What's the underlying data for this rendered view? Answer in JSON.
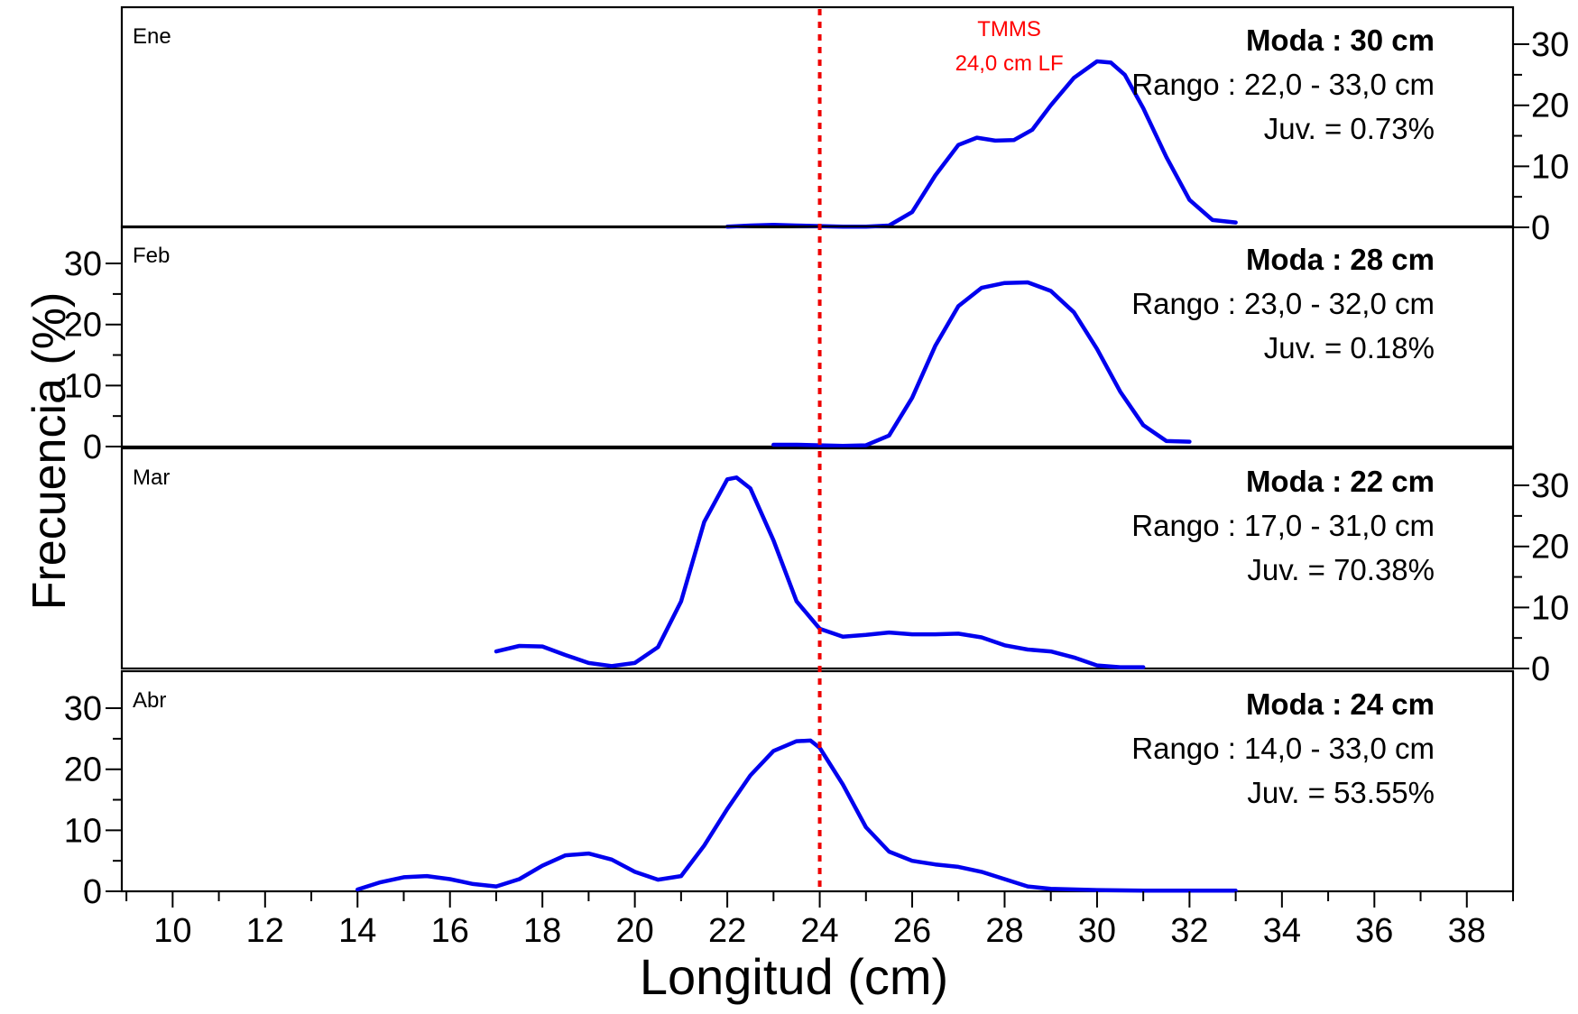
{
  "chart_data": {
    "type": "line",
    "xlabel": "Longitud (cm)",
    "ylabel": "Frecuencia (%)",
    "xlim": [
      8.9,
      39.0
    ],
    "x_ticks": [
      10,
      12,
      14,
      16,
      18,
      20,
      22,
      24,
      26,
      28,
      30,
      32,
      34,
      36,
      38
    ],
    "ylim": [
      0,
      34
    ],
    "y_ticks": [
      0,
      10,
      20,
      30
    ],
    "y_axis_sides": [
      "right",
      "left",
      "right",
      "left"
    ],
    "reference_line": {
      "x": 24.0,
      "label_line1": "TMMS",
      "label_line2": "24,0 cm LF",
      "color": "#ff0000"
    },
    "series_color": "#0000ee",
    "panels": [
      {
        "name": "Ene",
        "moda": "Moda : 30 cm",
        "rango": "Rango : 22,0 - 33,0 cm",
        "juv": "Juv. = 0.73%",
        "x": [
          22.0,
          22.5,
          23.0,
          23.5,
          24.0,
          24.5,
          25.0,
          25.5,
          26.0,
          26.5,
          27.0,
          27.4,
          27.8,
          28.2,
          28.6,
          29.0,
          29.5,
          30.0,
          30.3,
          30.6,
          31.0,
          31.5,
          32.0,
          32.5,
          33.0
        ],
        "y": [
          0.1,
          0.3,
          0.4,
          0.3,
          0.2,
          0.1,
          0.1,
          0.3,
          2.5,
          8.5,
          13.5,
          14.7,
          14.2,
          14.3,
          16.0,
          20.0,
          24.5,
          27.2,
          27.0,
          25.0,
          19.5,
          11.5,
          4.5,
          1.2,
          0.8
        ]
      },
      {
        "name": "Feb",
        "moda": "Moda : 28 cm",
        "rango": "Rango : 23,0 - 32,0 cm",
        "juv": "Juv. = 0.18%",
        "x": [
          23.0,
          23.5,
          24.0,
          24.5,
          25.0,
          25.5,
          26.0,
          26.5,
          27.0,
          27.5,
          28.0,
          28.5,
          29.0,
          29.5,
          30.0,
          30.5,
          31.0,
          31.5,
          32.0
        ],
        "y": [
          0.3,
          0.3,
          0.2,
          0.1,
          0.2,
          1.8,
          8.0,
          16.5,
          23.0,
          26.0,
          26.8,
          26.9,
          25.5,
          22.0,
          16.0,
          9.0,
          3.5,
          0.9,
          0.8
        ]
      },
      {
        "name": "Mar",
        "moda": "Moda : 22 cm",
        "rango": "Rango : 17,0 - 31,0 cm",
        "juv": "Juv. = 70.38%",
        "x": [
          17.0,
          17.5,
          18.0,
          18.5,
          19.0,
          19.5,
          20.0,
          20.5,
          21.0,
          21.5,
          22.0,
          22.2,
          22.5,
          23.0,
          23.5,
          24.0,
          24.5,
          25.0,
          25.5,
          26.0,
          26.5,
          27.0,
          27.5,
          28.0,
          28.5,
          29.0,
          29.5,
          30.0,
          30.5,
          31.0
        ],
        "y": [
          2.8,
          3.7,
          3.6,
          2.2,
          0.9,
          0.4,
          0.9,
          3.5,
          11.0,
          24.0,
          31.0,
          31.3,
          29.5,
          21.0,
          11.0,
          6.5,
          5.2,
          5.5,
          5.9,
          5.6,
          5.6,
          5.7,
          5.1,
          3.8,
          3.1,
          2.8,
          1.8,
          0.5,
          0.2,
          0.2
        ]
      },
      {
        "name": "Abr",
        "moda": "Moda : 24 cm",
        "rango": "Rango : 14,0 - 33,0 cm",
        "juv": "Juv. = 53.55%",
        "x": [
          14.0,
          14.5,
          15.0,
          15.5,
          16.0,
          16.5,
          17.0,
          17.5,
          18.0,
          18.5,
          19.0,
          19.5,
          20.0,
          20.5,
          21.0,
          21.5,
          22.0,
          22.5,
          23.0,
          23.5,
          23.8,
          24.0,
          24.5,
          25.0,
          25.5,
          26.0,
          26.5,
          27.0,
          27.5,
          28.0,
          28.5,
          29.0,
          30.0,
          31.0,
          32.0,
          33.0
        ],
        "y": [
          0.3,
          1.5,
          2.3,
          2.5,
          2.0,
          1.2,
          0.8,
          2.0,
          4.2,
          5.9,
          6.2,
          5.2,
          3.2,
          1.9,
          2.5,
          7.5,
          13.5,
          19.0,
          23.0,
          24.6,
          24.7,
          23.5,
          17.5,
          10.5,
          6.5,
          5.0,
          4.4,
          4.0,
          3.2,
          2.0,
          0.8,
          0.4,
          0.2,
          0.1,
          0.1,
          0.1
        ]
      }
    ]
  }
}
